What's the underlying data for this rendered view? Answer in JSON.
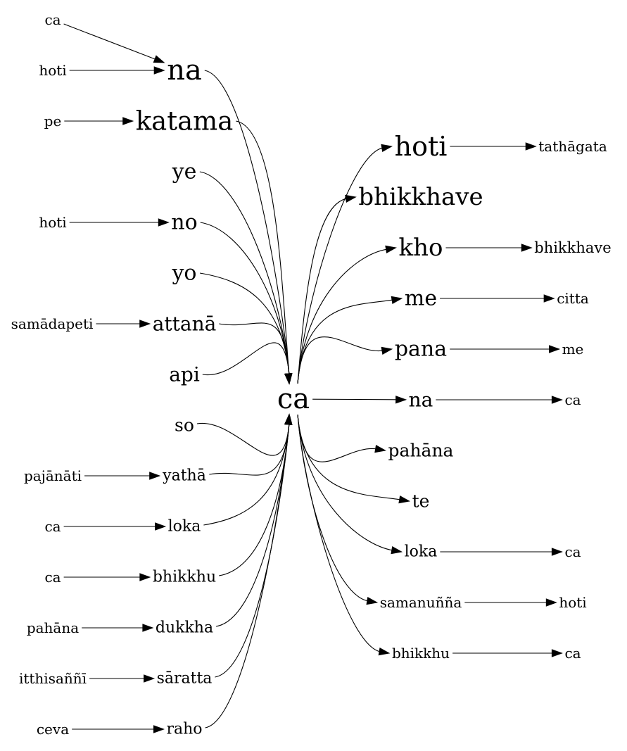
{
  "center": {
    "id": "center",
    "label": "ca"
  },
  "nodes": [
    {
      "id": "l1_ca",
      "label": "ca"
    },
    {
      "id": "l1_hoti_a",
      "label": "hoti"
    },
    {
      "id": "l1_pe",
      "label": "pe"
    },
    {
      "id": "l1_hoti_b",
      "label": "hoti"
    },
    {
      "id": "l1_samadapeti",
      "label": "samādapeti"
    },
    {
      "id": "l1_pajanati",
      "label": "pajānāti"
    },
    {
      "id": "l1_ca_b",
      "label": "ca"
    },
    {
      "id": "l1_ca_c",
      "label": "ca"
    },
    {
      "id": "l1_pahana",
      "label": "pahāna"
    },
    {
      "id": "l1_itthisanni",
      "label": "itthisaññī"
    },
    {
      "id": "l1_ceva",
      "label": "ceva"
    },
    {
      "id": "l2_na",
      "label": "na"
    },
    {
      "id": "l2_katama",
      "label": "katama"
    },
    {
      "id": "l2_ye",
      "label": "ye"
    },
    {
      "id": "l2_no",
      "label": "no"
    },
    {
      "id": "l2_yo",
      "label": "yo"
    },
    {
      "id": "l2_attana",
      "label": "attanā"
    },
    {
      "id": "l2_api",
      "label": "api"
    },
    {
      "id": "l2_so",
      "label": "so"
    },
    {
      "id": "l2_yatha",
      "label": "yathā"
    },
    {
      "id": "l2_loka",
      "label": "loka"
    },
    {
      "id": "l2_bhikkhu",
      "label": "bhikkhu"
    },
    {
      "id": "l2_dukkha",
      "label": "dukkha"
    },
    {
      "id": "l2_saratta",
      "label": "sāratta"
    },
    {
      "id": "l2_raho",
      "label": "raho"
    },
    {
      "id": "r1_hoti",
      "label": "hoti"
    },
    {
      "id": "r1_bhikkhave",
      "label": "bhikkhave"
    },
    {
      "id": "r1_kho",
      "label": "kho"
    },
    {
      "id": "r1_me",
      "label": "me"
    },
    {
      "id": "r1_pana",
      "label": "pana"
    },
    {
      "id": "r1_na",
      "label": "na"
    },
    {
      "id": "r1_pahana",
      "label": "pahāna"
    },
    {
      "id": "r1_te",
      "label": "te"
    },
    {
      "id": "r1_loka",
      "label": "loka"
    },
    {
      "id": "r1_samanunna",
      "label": "samanuñña"
    },
    {
      "id": "r1_bhikkhu",
      "label": "bhikkhu"
    },
    {
      "id": "r2_tathagata",
      "label": "tathāgata"
    },
    {
      "id": "r2_bhikkhave",
      "label": "bhikkhave"
    },
    {
      "id": "r2_citta",
      "label": "citta"
    },
    {
      "id": "r2_me",
      "label": "me"
    },
    {
      "id": "r2_ca_a",
      "label": "ca"
    },
    {
      "id": "r2_ca_b",
      "label": "ca"
    },
    {
      "id": "r2_hoti",
      "label": "hoti"
    },
    {
      "id": "r2_ca_c",
      "label": "ca"
    }
  ],
  "edges": [
    [
      "l1_ca",
      "l2_na"
    ],
    [
      "l1_hoti_a",
      "l2_na"
    ],
    [
      "l1_pe",
      "l2_katama"
    ],
    [
      "l1_hoti_b",
      "l2_no"
    ],
    [
      "l1_samadapeti",
      "l2_attana"
    ],
    [
      "l1_pajanati",
      "l2_yatha"
    ],
    [
      "l1_ca_b",
      "l2_loka"
    ],
    [
      "l1_ca_c",
      "l2_bhikkhu"
    ],
    [
      "l1_pahana",
      "l2_dukkha"
    ],
    [
      "l1_itthisanni",
      "l2_saratta"
    ],
    [
      "l1_ceva",
      "l2_raho"
    ],
    [
      "l2_na",
      "center"
    ],
    [
      "l2_katama",
      "center"
    ],
    [
      "l2_ye",
      "center"
    ],
    [
      "l2_no",
      "center"
    ],
    [
      "l2_yo",
      "center"
    ],
    [
      "l2_attana",
      "center"
    ],
    [
      "l2_api",
      "center"
    ],
    [
      "l2_so",
      "center"
    ],
    [
      "l2_yatha",
      "center"
    ],
    [
      "l2_loka",
      "center"
    ],
    [
      "l2_bhikkhu",
      "center"
    ],
    [
      "l2_dukkha",
      "center"
    ],
    [
      "l2_saratta",
      "center"
    ],
    [
      "l2_raho",
      "center"
    ],
    [
      "center",
      "r1_hoti"
    ],
    [
      "center",
      "r1_bhikkhave"
    ],
    [
      "center",
      "r1_kho"
    ],
    [
      "center",
      "r1_me"
    ],
    [
      "center",
      "r1_pana"
    ],
    [
      "center",
      "r1_na"
    ],
    [
      "center",
      "r1_pahana"
    ],
    [
      "center",
      "r1_te"
    ],
    [
      "center",
      "r1_loka"
    ],
    [
      "center",
      "r1_samanunna"
    ],
    [
      "center",
      "r1_bhikkhu"
    ],
    [
      "r1_hoti",
      "r2_tathagata"
    ],
    [
      "r1_kho",
      "r2_bhikkhave"
    ],
    [
      "r1_me",
      "r2_citta"
    ],
    [
      "r1_pana",
      "r2_me"
    ],
    [
      "r1_na",
      "r2_ca_a"
    ],
    [
      "r1_loka",
      "r2_ca_b"
    ],
    [
      "r1_samanunna",
      "r2_hoti"
    ],
    [
      "r1_bhikkhu",
      "r2_ca_c"
    ]
  ]
}
